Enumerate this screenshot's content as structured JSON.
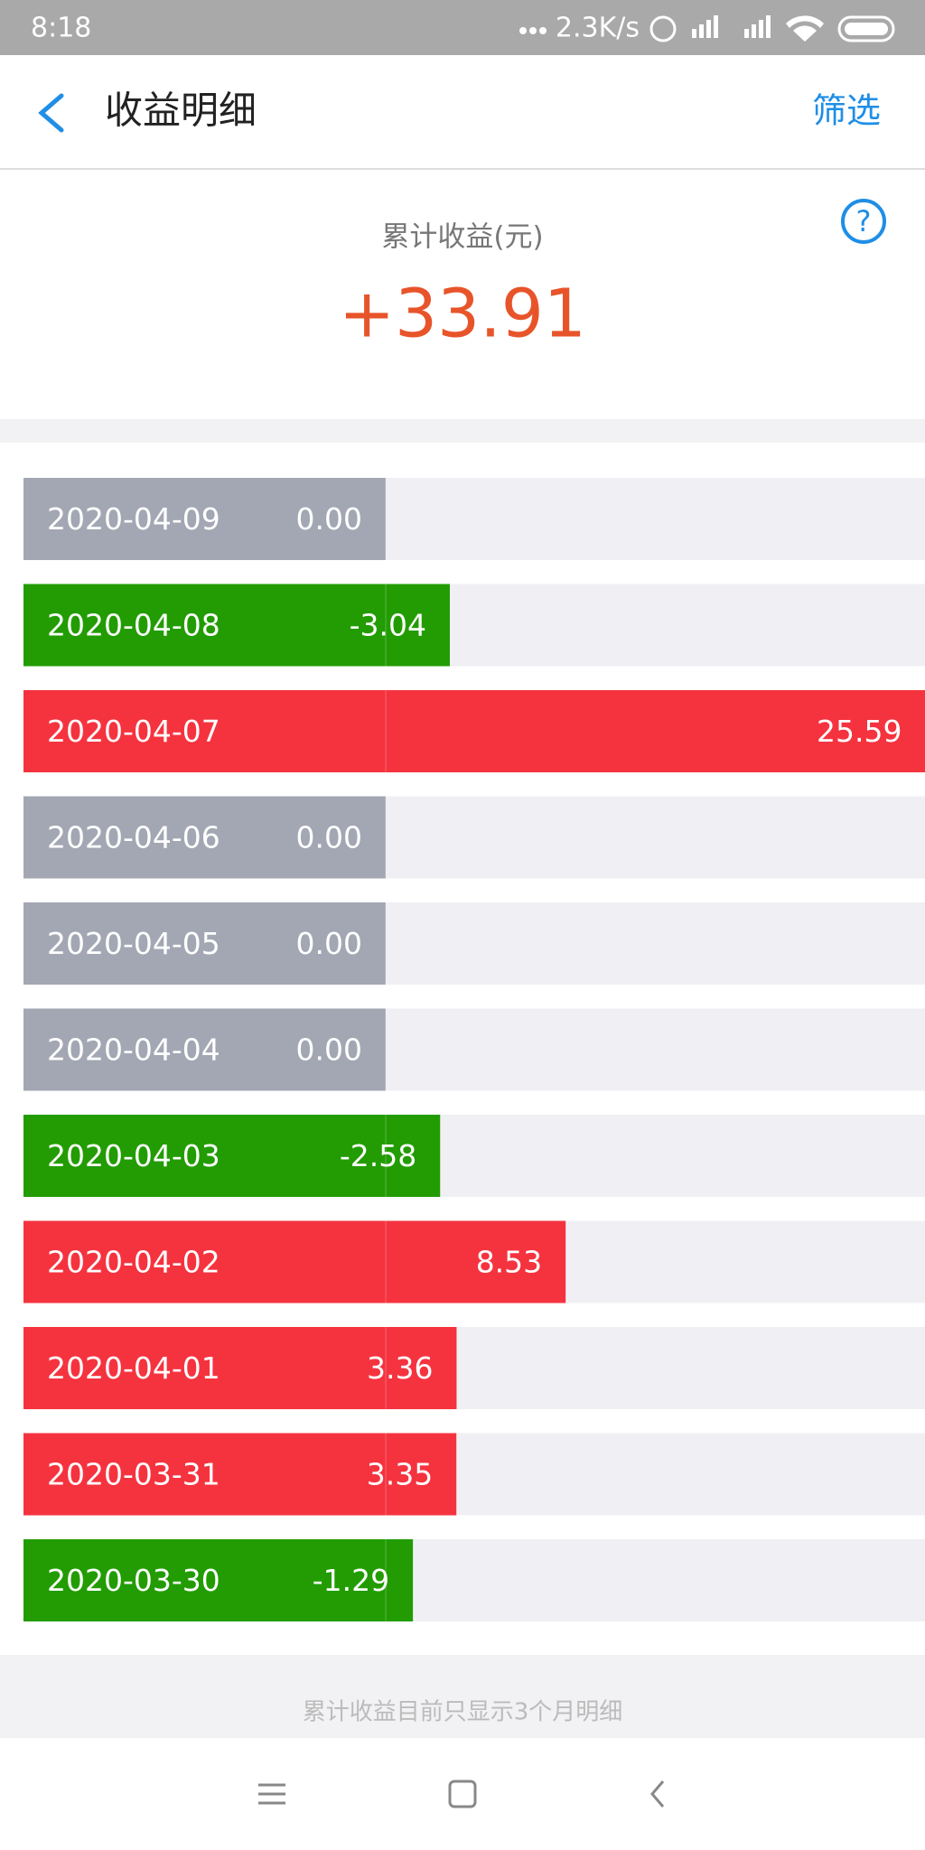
{
  "status_bar": {
    "time": "8:18",
    "network": "2.3K/s"
  },
  "header": {
    "title": "收益明细",
    "filter": "筛选"
  },
  "summary": {
    "label": "累计收益(元)",
    "total": 33.91,
    "total_label": "+33.91"
  },
  "chart_data": {
    "type": "bar",
    "categories": [
      "2020-04-09",
      "2020-04-08",
      "2020-04-07",
      "2020-04-06",
      "2020-04-05",
      "2020-04-04",
      "2020-04-03",
      "2020-04-02",
      "2020-04-01",
      "2020-03-31",
      "2020-03-30"
    ],
    "values": [
      0,
      -3.04,
      25.59,
      0,
      0,
      0,
      -2.58,
      8.53,
      3.36,
      3.35,
      -1.29
    ],
    "value_labels": [
      "0.00",
      "-3.04",
      "25.59",
      "0.00",
      "0.00",
      "0.00",
      "-2.58",
      "8.53",
      "3.36",
      "3.35",
      "-1.29"
    ],
    "colors": {
      "positive": "#f5333f",
      "negative": "#229c02",
      "zero": "#a3a7b3"
    }
  },
  "footer": {
    "note": "累计收益目前只显示3个月明细"
  }
}
